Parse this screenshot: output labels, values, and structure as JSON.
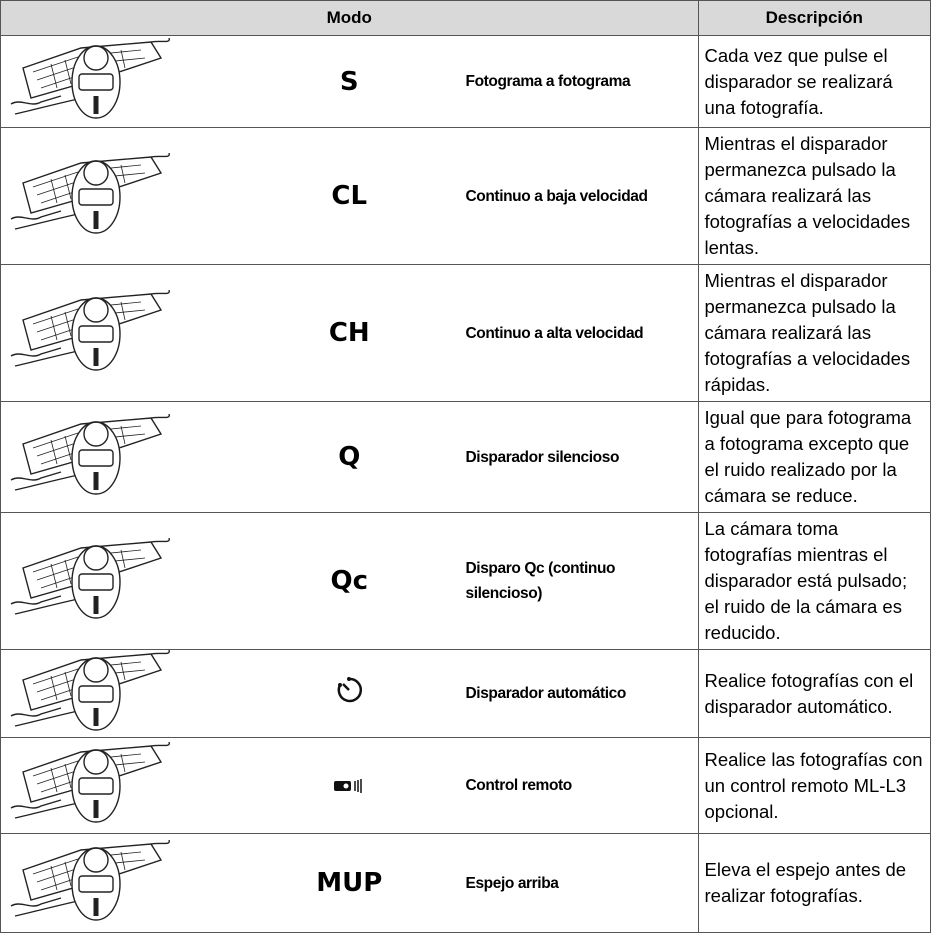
{
  "table": {
    "header": [
      "Modo",
      "Descripción"
    ],
    "rows": [
      {
        "symbol": "S",
        "mode": "Fotograma a fotograma",
        "description": "Cada vez que pulse el disparador se realizará una fotografía."
      },
      {
        "symbol": "CL",
        "mode": "Continuo a baja velocidad",
        "description": "Mientras el disparador permanezca pulsado la cámara realizará las fotografías a velocidades lentas."
      },
      {
        "symbol": "CH",
        "mode": "Continuo a alta velocidad",
        "description": "Mientras el disparador permanezca pulsado la cámara realizará las fotografías a velocidades rápidas."
      },
      {
        "symbol": "Q",
        "mode": "Disparador silencioso",
        "description": "Igual que para fotograma a fotograma excepto que el ruido realizado por la cámara se reduce."
      },
      {
        "symbol": "Qc",
        "mode": "Disparo Qc (continuo silencioso)",
        "description": "La cámara toma fotografías mientras el disparador está pulsado; el ruido de la cámara es reducido."
      },
      {
        "mode": "Disparador automático",
        "description": "Realice fotografías con el disparador automático."
      },
      {
        "mode": "Control remoto",
        "description": "Realice las fotografías con un control remoto ML-L3 opcional."
      },
      {
        "symbol": "MUP",
        "mode": "Espejo arriba",
        "description": "Eleva el espejo antes de realizar fotografías."
      }
    ]
  }
}
